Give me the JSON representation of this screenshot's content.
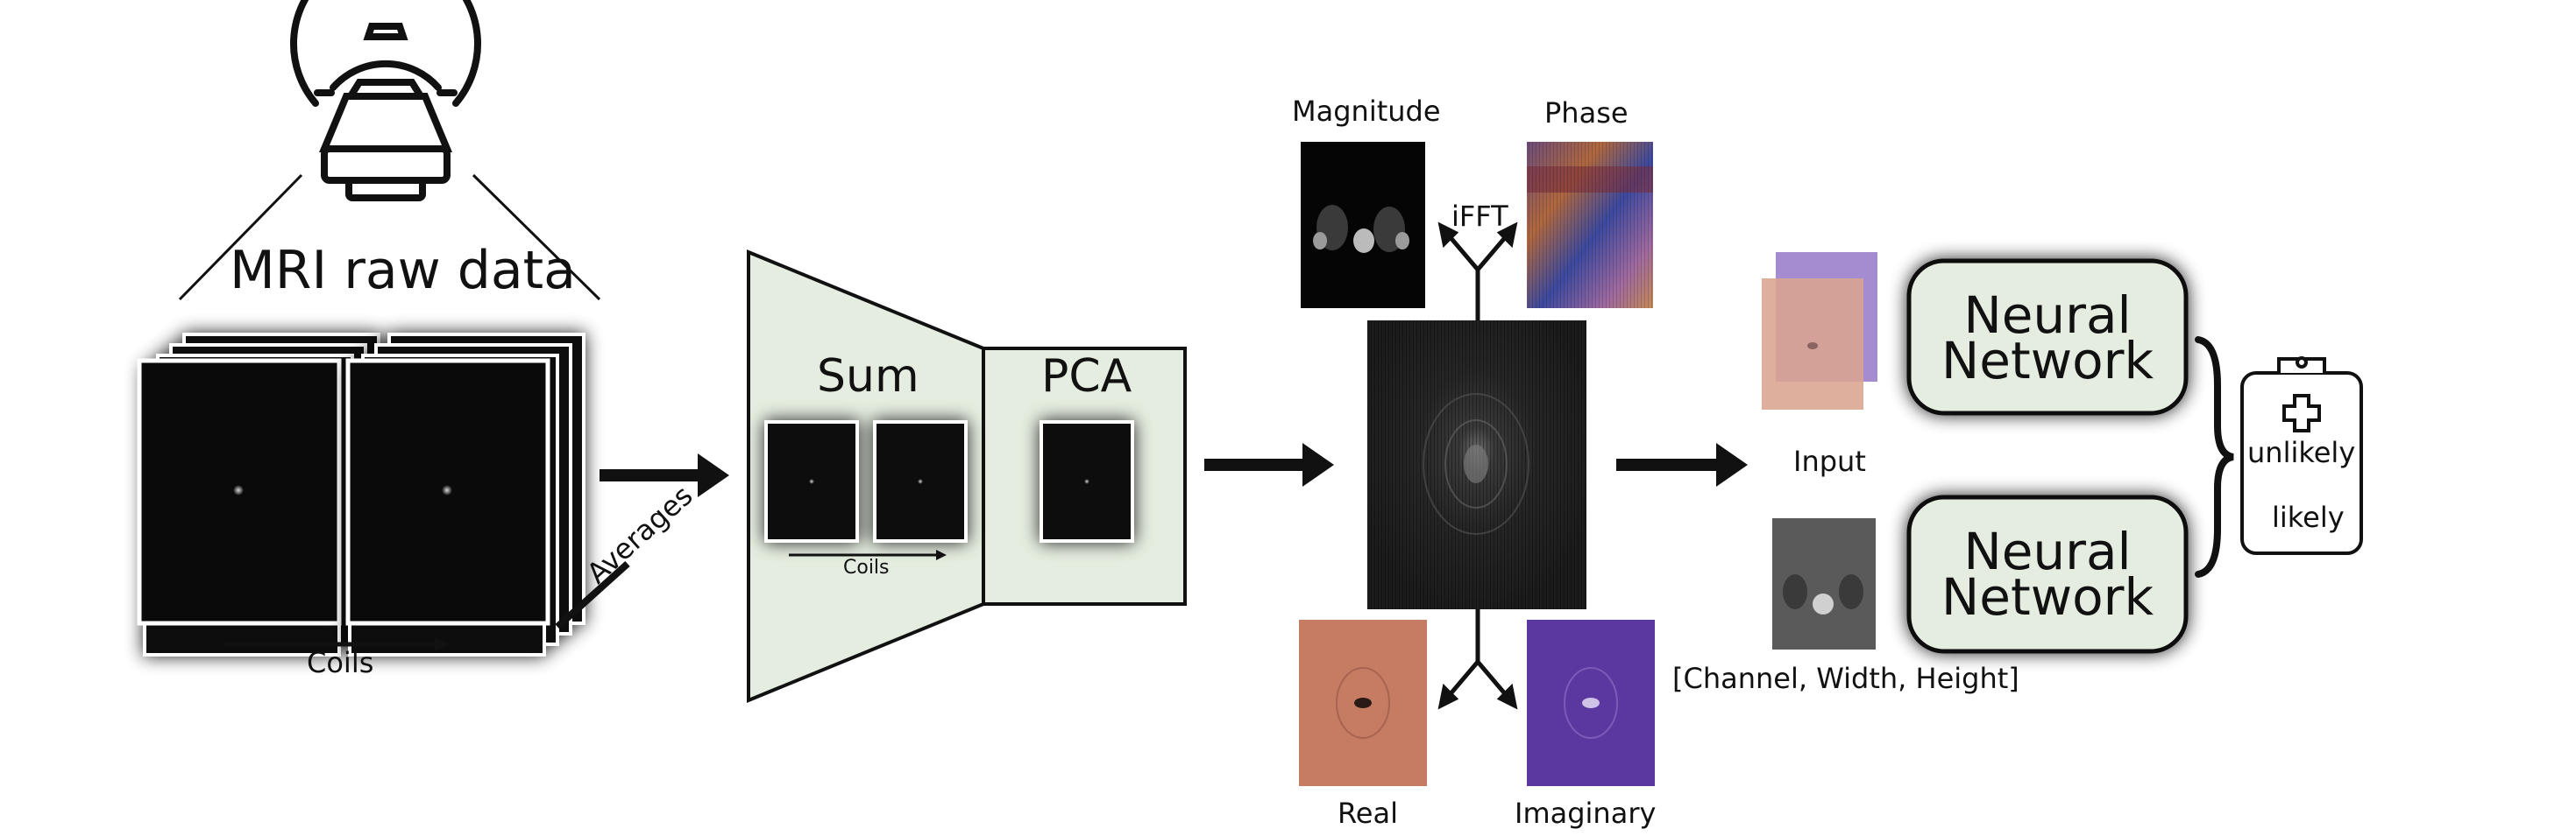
{
  "figure": {
    "raw_data_title": "MRI raw data",
    "coils_label": "Coils",
    "averages_label": "Averages",
    "sum_label": "Sum",
    "pca_label": "PCA",
    "coils_small_label": "Coils",
    "magnitude_label": "Magnitude",
    "phase_label": "Phase",
    "ifft_label": "iFFT",
    "real_label": "Real",
    "imaginary_label": "Imaginary",
    "input_label": "Input",
    "shape_label": "[Channel, Width, Height]",
    "network_top": {
      "line1": "Neural",
      "line2": "Network"
    },
    "network_bottom": {
      "line1": "Neural",
      "line2": "Network"
    },
    "clipboard": {
      "line1": "unlikely",
      "line2": "likely"
    }
  },
  "icons": {
    "scanner": "mri-scanner-icon",
    "clipboard": "medical-clipboard-icon",
    "medical_cross": "medical-cross-icon"
  },
  "colors": {
    "panel_fill": "#e5ede0",
    "network_fill": "#e5ede0",
    "real_fill": "#c67b63",
    "imaginary_fill": "#5b37a0",
    "input_violet": "#9b7fcc",
    "input_salmon": "#d9a48e"
  }
}
